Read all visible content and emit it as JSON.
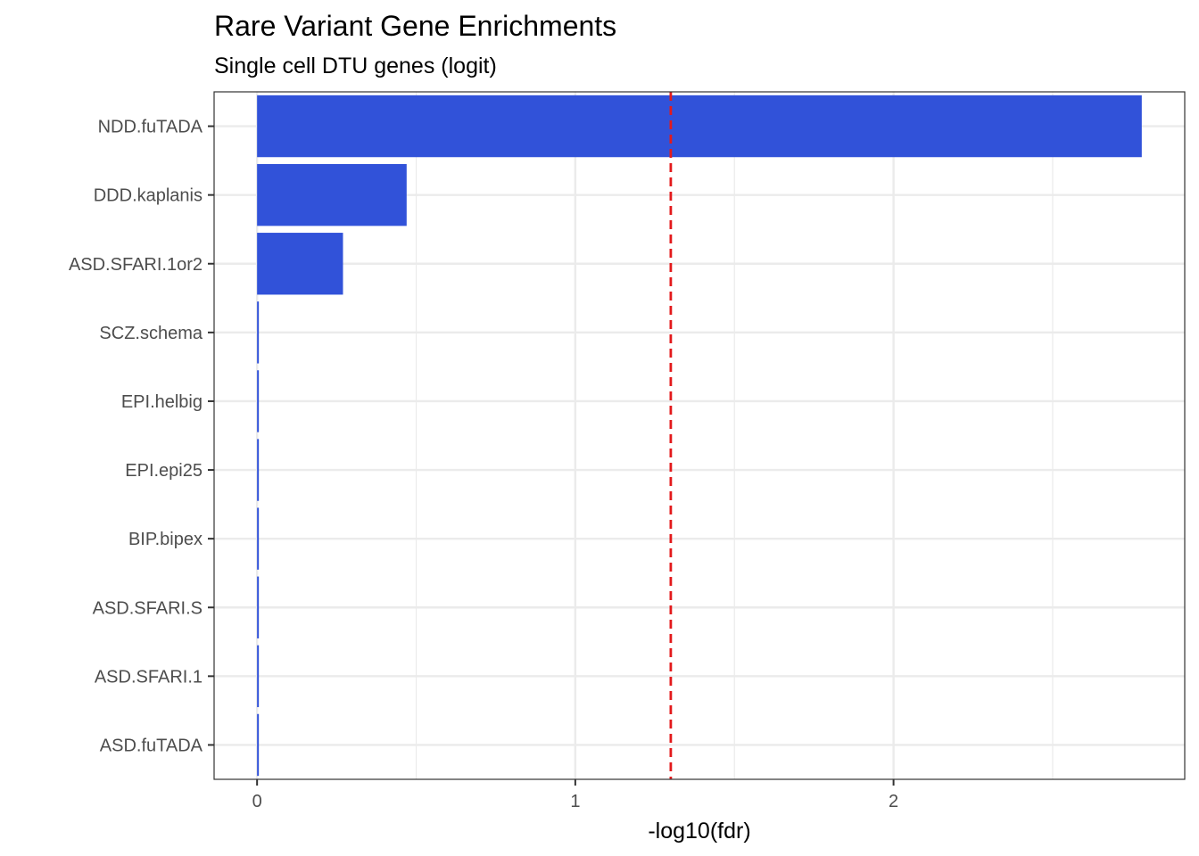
{
  "chart_data": {
    "type": "bar",
    "orientation": "horizontal",
    "title": "Rare Variant Gene Enrichments",
    "subtitle": "Single cell DTU genes (logit)",
    "xlabel": "-log10(fdr)",
    "ylabel": "",
    "categories": [
      "NDD.fuTADA",
      "DDD.kaplanis",
      "ASD.SFARI.1or2",
      "SCZ.schema",
      "EPI.helbig",
      "EPI.epi25",
      "BIP.bipex",
      "ASD.SFARI.S",
      "ASD.SFARI.1",
      "ASD.fuTADA"
    ],
    "values": [
      2.78,
      0.47,
      0.27,
      0.005,
      0.005,
      0.005,
      0.005,
      0.005,
      0.005,
      0.005
    ],
    "xlim": [
      -0.135,
      2.915
    ],
    "xticks": [
      0,
      1,
      2
    ],
    "xtick_labels": [
      "0",
      "1",
      "2"
    ],
    "reference_line": 1.3,
    "reference_line_color": "#e31a1c",
    "bar_color": "#3152d9",
    "grid": true,
    "theme": "bw"
  }
}
